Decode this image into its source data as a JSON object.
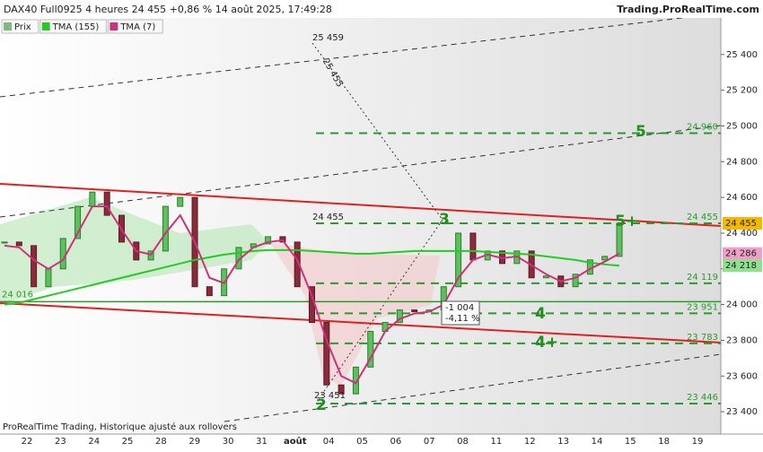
{
  "header": {
    "title": "DAX40 Full0925 4 heures 24 455 +0,86 % 14 août 2025, 17:49:28",
    "source": "Trading.ProRealTime.com"
  },
  "legend": [
    {
      "name": "Prix",
      "color": "#7dbb7d"
    },
    {
      "name": "TMA (155)",
      "color": "#22cc22"
    },
    {
      "name": "TMA (7)",
      "color": "#d0307a"
    }
  ],
  "footer": "ProRealTime Trading, Historique ajusté aux rollovers",
  "chart_data": {
    "type": "candlestick",
    "values": [
      24350,
      24330,
      24100,
      24200,
      24370,
      24550,
      24630,
      24500,
      24350,
      24250,
      24300,
      24550,
      24600,
      24100,
      24050,
      24200,
      24320,
      24340,
      24380,
      24350,
      24100,
      23900,
      23550,
      23500,
      23650,
      23850,
      23900,
      23970,
      23960,
      23970,
      24100,
      24400,
      24250,
      24300,
      24230,
      24300,
      24150,
      24160,
      24100,
      24170,
      24250,
      24270,
      24455
    ],
    "tma155": [
      24000,
      24010,
      24030,
      24050,
      24070,
      24090,
      24110,
      24130,
      24150,
      24170,
      24190,
      24210,
      24230,
      24250,
      24265,
      24280,
      24290,
      24300,
      24305,
      24305,
      24305,
      24300,
      24295,
      24290,
      24285,
      24285,
      24290,
      24295,
      24300,
      24300,
      24300,
      24300,
      24300,
      24295,
      24290,
      24285,
      24280,
      24270,
      24260,
      24250,
      24235,
      24225,
      24218
    ],
    "tma7": [
      24330,
      24320,
      24250,
      24200,
      24250,
      24400,
      24550,
      24550,
      24420,
      24300,
      24280,
      24400,
      24500,
      24350,
      24150,
      24120,
      24250,
      24320,
      24350,
      24360,
      24250,
      24050,
      23800,
      23600,
      23560,
      23700,
      23850,
      23920,
      23950,
      23960,
      24000,
      24150,
      24250,
      24280,
      24260,
      24270,
      24220,
      24170,
      24130,
      24150,
      24200,
      24240,
      24286
    ],
    "ylim": [
      23275,
      25605
    ],
    "yticks": [
      {
        "value": 25400,
        "label": "25 400"
      },
      {
        "value": 25200,
        "label": "25 200"
      },
      {
        "value": 25000,
        "label": "25 000"
      },
      {
        "value": 24800,
        "label": "24 800"
      },
      {
        "value": 24600,
        "label": "24 600"
      },
      {
        "value": 24400,
        "label": "24 400"
      },
      {
        "value": 24200,
        "label": "24 200"
      },
      {
        "value": 24000,
        "label": "24 000"
      },
      {
        "value": 23800,
        "label": "23 800"
      },
      {
        "value": 23600,
        "label": "23 600"
      },
      {
        "value": 23400,
        "label": "23 400"
      }
    ],
    "xticks": [
      "22",
      "23",
      "24",
      "25",
      "28",
      "29",
      "30",
      "31",
      "août",
      "04",
      "05",
      "06",
      "07",
      "08",
      "11",
      "12",
      "13",
      "14",
      "15",
      "18",
      "19"
    ],
    "levels": [
      {
        "value": 24960,
        "label": "24 960"
      },
      {
        "value": 24455,
        "label": "24 455"
      },
      {
        "value": 24119,
        "label": "24 119"
      },
      {
        "value": 23951,
        "label": "23 951"
      },
      {
        "value": 23783,
        "label": "23 783"
      },
      {
        "value": 23446,
        "label": "23 446"
      }
    ],
    "support": {
      "value": 24016,
      "label": "24 016"
    },
    "price_tags": [
      {
        "value": 24455,
        "label": "24 455",
        "color": "#f5b800"
      },
      {
        "value": 24286,
        "label": "24 286",
        "color": "#f0a0c8"
      },
      {
        "value": 24218,
        "label": "24 218",
        "color": "#8fe08f"
      }
    ],
    "annotations": [
      "25 459",
      "25 455",
      "24 455",
      "23 451",
      "-1 004",
      "-4,11 %"
    ],
    "waves": [
      "2",
      "3",
      "4",
      "4+",
      "5",
      "5+"
    ]
  }
}
